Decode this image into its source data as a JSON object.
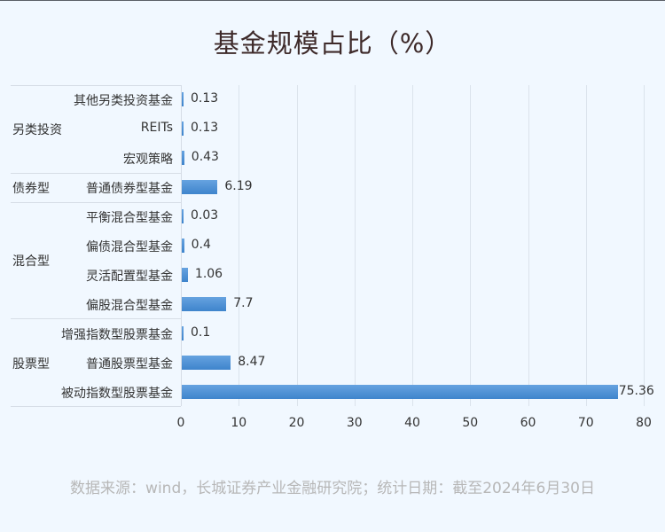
{
  "title": "基金规模占比（%）",
  "source": "数据来源：wind，长城证券产业金融研究院；统计日期：截至2024年6月30日",
  "colors": {
    "bar": "#4a8fd6",
    "background": "#f1f8ff",
    "title": "#3e2a2a",
    "source": "#b7b7b7",
    "grid": "#dbe3ec"
  },
  "axis": {
    "ticks": [
      "0",
      "10",
      "20",
      "30",
      "40",
      "50",
      "60",
      "70",
      "80"
    ]
  },
  "groups": [
    {
      "label": "另类投资",
      "rows": [
        0,
        1,
        2
      ]
    },
    {
      "label": "债券型",
      "rows": [
        3
      ]
    },
    {
      "label": "混合型",
      "rows": [
        4,
        5,
        6,
        7
      ]
    },
    {
      "label": "股票型",
      "rows": [
        8,
        9,
        10
      ]
    }
  ],
  "rows": [
    {
      "label": "其他另类投资基金",
      "value": 0.13,
      "value_label": "0.13"
    },
    {
      "label": "REITs",
      "value": 0.13,
      "value_label": "0.13"
    },
    {
      "label": "宏观策略",
      "value": 0.43,
      "value_label": "0.43"
    },
    {
      "label": "普通债券型基金",
      "value": 6.19,
      "value_label": "6.19"
    },
    {
      "label": "平衡混合型基金",
      "value": 0.03,
      "value_label": "0.03"
    },
    {
      "label": "偏债混合型基金",
      "value": 0.4,
      "value_label": "0.4"
    },
    {
      "label": "灵活配置型基金",
      "value": 1.06,
      "value_label": "1.06"
    },
    {
      "label": "偏股混合型基金",
      "value": 7.7,
      "value_label": "7.7"
    },
    {
      "label": "增强指数型股票基金",
      "value": 0.1,
      "value_label": "0.1"
    },
    {
      "label": "普通股票型基金",
      "value": 8.47,
      "value_label": "8.47"
    },
    {
      "label": "被动指数型股票基金",
      "value": 75.36,
      "value_label": "75.36"
    }
  ],
  "chart_data": {
    "type": "bar",
    "orientation": "horizontal",
    "title": "基金规模占比（%）",
    "xlabel": "",
    "ylabel": "",
    "xlim": [
      0,
      80
    ],
    "grid": true,
    "legend": null,
    "categories": [
      "其他另类投资基金",
      "REITs",
      "宏观策略",
      "普通债券型基金",
      "平衡混合型基金",
      "偏债混合型基金",
      "灵活配置型基金",
      "偏股混合型基金",
      "增强指数型股票基金",
      "普通股票型基金",
      "被动指数型股票基金"
    ],
    "category_groups": {
      "另类投资": [
        "其他另类投资基金",
        "REITs",
        "宏观策略"
      ],
      "债券型": [
        "普通债券型基金"
      ],
      "混合型": [
        "平衡混合型基金",
        "偏债混合型基金",
        "灵活配置型基金",
        "偏股混合型基金"
      ],
      "股票型": [
        "增强指数型股票基金",
        "普通股票型基金",
        "被动指数型股票基金"
      ]
    },
    "values": [
      0.13,
      0.13,
      0.43,
      6.19,
      0.03,
      0.4,
      1.06,
      7.7,
      0.1,
      8.47,
      75.36
    ],
    "x_ticks": [
      0,
      10,
      20,
      30,
      40,
      50,
      60,
      70,
      80
    ],
    "annotations": "数据来源：wind，长城证券产业金融研究院；统计日期：截至2024年6月30日"
  }
}
